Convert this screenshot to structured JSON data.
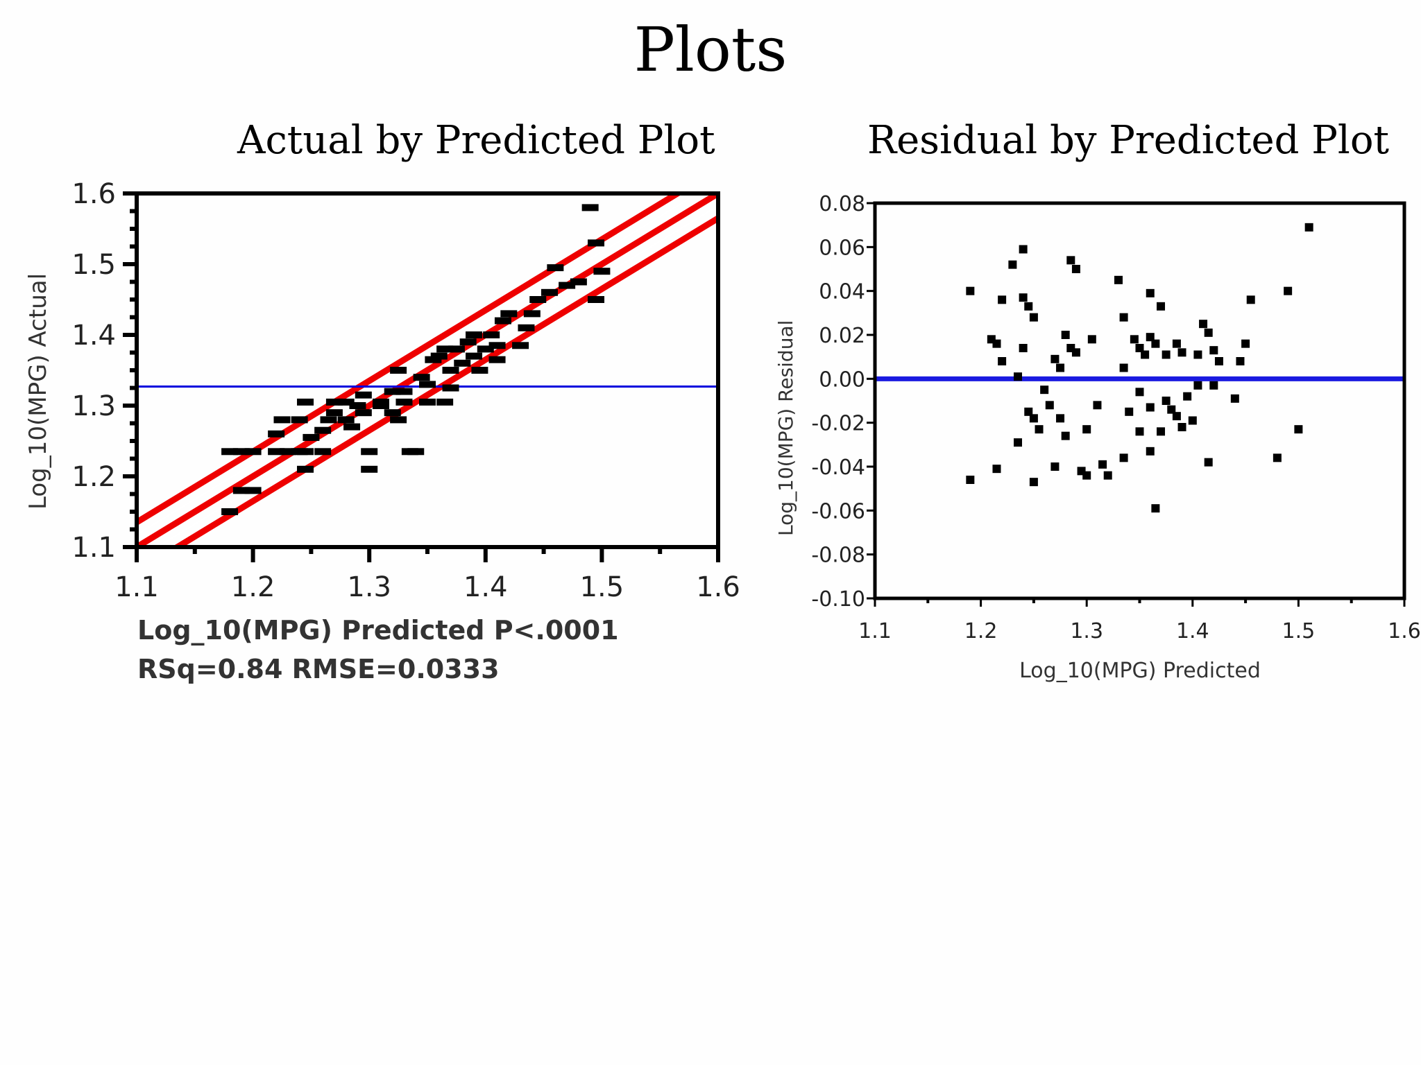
{
  "slide": {
    "title": "Plots"
  },
  "chart_data": [
    {
      "type": "scatter",
      "title": "Actual by Predicted Plot",
      "xlabel": "Log_10(MPG) Predicted P<.0001",
      "subtitle": "RSq=0.84 RMSE=0.0333",
      "ylabel": "Log_10(MPG) Actual",
      "xlim": [
        1.1,
        1.6
      ],
      "ylim": [
        1.1,
        1.6
      ],
      "x_ticks": [
        "1.1",
        "1.2",
        "1.3",
        "1.4",
        "1.5",
        "1.6"
      ],
      "y_ticks": [
        "1.1",
        "1.2",
        "1.3",
        "1.4",
        "1.5",
        "1.6"
      ],
      "mean_line": {
        "y": 1.327,
        "color": "#0000dd"
      },
      "fit_line": {
        "x": [
          1.1,
          1.6
        ],
        "y": [
          1.1,
          1.6
        ],
        "color": "#ee0000"
      },
      "confidence_offset": 0.035,
      "points": [
        {
          "x": 1.18,
          "y": 1.15
        },
        {
          "x": 1.19,
          "y": 1.18
        },
        {
          "x": 1.2,
          "y": 1.18
        },
        {
          "x": 1.18,
          "y": 1.235
        },
        {
          "x": 1.19,
          "y": 1.235
        },
        {
          "x": 1.2,
          "y": 1.235
        },
        {
          "x": 1.22,
          "y": 1.235
        },
        {
          "x": 1.23,
          "y": 1.235
        },
        {
          "x": 1.24,
          "y": 1.235
        },
        {
          "x": 1.22,
          "y": 1.26
        },
        {
          "x": 1.225,
          "y": 1.28
        },
        {
          "x": 1.24,
          "y": 1.28
        },
        {
          "x": 1.245,
          "y": 1.21
        },
        {
          "x": 1.245,
          "y": 1.235
        },
        {
          "x": 1.26,
          "y": 1.235
        },
        {
          "x": 1.25,
          "y": 1.255
        },
        {
          "x": 1.26,
          "y": 1.265
        },
        {
          "x": 1.265,
          "y": 1.28
        },
        {
          "x": 1.27,
          "y": 1.29
        },
        {
          "x": 1.28,
          "y": 1.28
        },
        {
          "x": 1.285,
          "y": 1.27
        },
        {
          "x": 1.245,
          "y": 1.305
        },
        {
          "x": 1.27,
          "y": 1.305
        },
        {
          "x": 1.28,
          "y": 1.305
        },
        {
          "x": 1.29,
          "y": 1.3
        },
        {
          "x": 1.295,
          "y": 1.29
        },
        {
          "x": 1.295,
          "y": 1.315
        },
        {
          "x": 1.3,
          "y": 1.235
        },
        {
          "x": 1.3,
          "y": 1.21
        },
        {
          "x": 1.31,
          "y": 1.305
        },
        {
          "x": 1.31,
          "y": 1.3
        },
        {
          "x": 1.32,
          "y": 1.32
        },
        {
          "x": 1.32,
          "y": 1.29
        },
        {
          "x": 1.325,
          "y": 1.28
        },
        {
          "x": 1.325,
          "y": 1.35
        },
        {
          "x": 1.33,
          "y": 1.32
        },
        {
          "x": 1.33,
          "y": 1.305
        },
        {
          "x": 1.335,
          "y": 1.235
        },
        {
          "x": 1.34,
          "y": 1.235
        },
        {
          "x": 1.345,
          "y": 1.34
        },
        {
          "x": 1.35,
          "y": 1.33
        },
        {
          "x": 1.35,
          "y": 1.305
        },
        {
          "x": 1.355,
          "y": 1.365
        },
        {
          "x": 1.36,
          "y": 1.37
        },
        {
          "x": 1.365,
          "y": 1.38
        },
        {
          "x": 1.365,
          "y": 1.305
        },
        {
          "x": 1.37,
          "y": 1.35
        },
        {
          "x": 1.37,
          "y": 1.325
        },
        {
          "x": 1.375,
          "y": 1.38
        },
        {
          "x": 1.38,
          "y": 1.36
        },
        {
          "x": 1.385,
          "y": 1.39
        },
        {
          "x": 1.39,
          "y": 1.4
        },
        {
          "x": 1.39,
          "y": 1.37
        },
        {
          "x": 1.395,
          "y": 1.35
        },
        {
          "x": 1.4,
          "y": 1.38
        },
        {
          "x": 1.405,
          "y": 1.4
        },
        {
          "x": 1.41,
          "y": 1.365
        },
        {
          "x": 1.41,
          "y": 1.385
        },
        {
          "x": 1.415,
          "y": 1.42
        },
        {
          "x": 1.42,
          "y": 1.43
        },
        {
          "x": 1.43,
          "y": 1.385
        },
        {
          "x": 1.435,
          "y": 1.41
        },
        {
          "x": 1.44,
          "y": 1.43
        },
        {
          "x": 1.445,
          "y": 1.45
        },
        {
          "x": 1.455,
          "y": 1.46
        },
        {
          "x": 1.46,
          "y": 1.495
        },
        {
          "x": 1.47,
          "y": 1.47
        },
        {
          "x": 1.48,
          "y": 1.475
        },
        {
          "x": 1.49,
          "y": 1.58
        },
        {
          "x": 1.495,
          "y": 1.53
        },
        {
          "x": 1.495,
          "y": 1.45
        },
        {
          "x": 1.5,
          "y": 1.49
        }
      ]
    },
    {
      "type": "scatter",
      "title": "Residual by Predicted Plot",
      "xlabel": "Log_10(MPG) Predicted",
      "ylabel": "Log_10(MPG) Residual",
      "xlim": [
        1.1,
        1.6
      ],
      "ylim": [
        -0.1,
        0.08
      ],
      "x_ticks": [
        "1.1",
        "1.2",
        "1.3",
        "1.4",
        "1.5",
        "1.6"
      ],
      "y_ticks": [
        "0.08",
        "0.06",
        "0.04",
        "0.02",
        "0.00",
        "-0.02",
        "-0.04",
        "-0.06",
        "-0.08",
        "-0.10"
      ],
      "zero_line": {
        "y": 0.0,
        "color": "#1a1ae0"
      },
      "points": [
        {
          "x": 1.19,
          "y": 0.04
        },
        {
          "x": 1.19,
          "y": -0.046
        },
        {
          "x": 1.21,
          "y": 0.018
        },
        {
          "x": 1.215,
          "y": 0.016
        },
        {
          "x": 1.215,
          "y": -0.041
        },
        {
          "x": 1.22,
          "y": 0.036
        },
        {
          "x": 1.22,
          "y": 0.008
        },
        {
          "x": 1.23,
          "y": 0.052
        },
        {
          "x": 1.235,
          "y": 0.001
        },
        {
          "x": 1.235,
          "y": -0.029
        },
        {
          "x": 1.24,
          "y": 0.037
        },
        {
          "x": 1.24,
          "y": 0.014
        },
        {
          "x": 1.24,
          "y": 0.059
        },
        {
          "x": 1.245,
          "y": 0.033
        },
        {
          "x": 1.245,
          "y": -0.015
        },
        {
          "x": 1.25,
          "y": 0.028
        },
        {
          "x": 1.25,
          "y": -0.018
        },
        {
          "x": 1.25,
          "y": -0.047
        },
        {
          "x": 1.255,
          "y": -0.023
        },
        {
          "x": 1.26,
          "y": -0.005
        },
        {
          "x": 1.265,
          "y": -0.012
        },
        {
          "x": 1.27,
          "y": 0.009
        },
        {
          "x": 1.27,
          "y": -0.04
        },
        {
          "x": 1.275,
          "y": 0.005
        },
        {
          "x": 1.275,
          "y": -0.018
        },
        {
          "x": 1.28,
          "y": 0.02
        },
        {
          "x": 1.28,
          "y": -0.026
        },
        {
          "x": 1.285,
          "y": 0.054
        },
        {
          "x": 1.285,
          "y": 0.014
        },
        {
          "x": 1.29,
          "y": 0.05
        },
        {
          "x": 1.29,
          "y": 0.012
        },
        {
          "x": 1.295,
          "y": -0.042
        },
        {
          "x": 1.3,
          "y": -0.044
        },
        {
          "x": 1.3,
          "y": -0.023
        },
        {
          "x": 1.305,
          "y": 0.018
        },
        {
          "x": 1.31,
          "y": -0.012
        },
        {
          "x": 1.315,
          "y": -0.039
        },
        {
          "x": 1.32,
          "y": -0.044
        },
        {
          "x": 1.33,
          "y": 0.045
        },
        {
          "x": 1.335,
          "y": 0.028
        },
        {
          "x": 1.335,
          "y": 0.005
        },
        {
          "x": 1.335,
          "y": -0.036
        },
        {
          "x": 1.34,
          "y": -0.015
        },
        {
          "x": 1.345,
          "y": 0.018
        },
        {
          "x": 1.35,
          "y": 0.014
        },
        {
          "x": 1.35,
          "y": -0.006
        },
        {
          "x": 1.35,
          "y": -0.024
        },
        {
          "x": 1.355,
          "y": 0.011
        },
        {
          "x": 1.36,
          "y": 0.039
        },
        {
          "x": 1.36,
          "y": 0.019
        },
        {
          "x": 1.36,
          "y": -0.013
        },
        {
          "x": 1.36,
          "y": -0.033
        },
        {
          "x": 1.365,
          "y": -0.059
        },
        {
          "x": 1.365,
          "y": 0.016
        },
        {
          "x": 1.37,
          "y": 0.033
        },
        {
          "x": 1.37,
          "y": -0.024
        },
        {
          "x": 1.375,
          "y": 0.011
        },
        {
          "x": 1.375,
          "y": -0.01
        },
        {
          "x": 1.38,
          "y": -0.014
        },
        {
          "x": 1.385,
          "y": 0.016
        },
        {
          "x": 1.385,
          "y": -0.017
        },
        {
          "x": 1.39,
          "y": 0.012
        },
        {
          "x": 1.39,
          "y": -0.022
        },
        {
          "x": 1.395,
          "y": -0.008
        },
        {
          "x": 1.4,
          "y": -0.019
        },
        {
          "x": 1.405,
          "y": 0.011
        },
        {
          "x": 1.405,
          "y": -0.003
        },
        {
          "x": 1.41,
          "y": 0.025
        },
        {
          "x": 1.415,
          "y": 0.021
        },
        {
          "x": 1.415,
          "y": -0.038
        },
        {
          "x": 1.42,
          "y": 0.013
        },
        {
          "x": 1.42,
          "y": -0.003
        },
        {
          "x": 1.425,
          "y": 0.008
        },
        {
          "x": 1.44,
          "y": -0.009
        },
        {
          "x": 1.445,
          "y": 0.008
        },
        {
          "x": 1.45,
          "y": 0.016
        },
        {
          "x": 1.455,
          "y": 0.036
        },
        {
          "x": 1.48,
          "y": -0.036
        },
        {
          "x": 1.49,
          "y": 0.04
        },
        {
          "x": 1.5,
          "y": -0.023
        },
        {
          "x": 1.51,
          "y": 0.069
        }
      ]
    }
  ]
}
